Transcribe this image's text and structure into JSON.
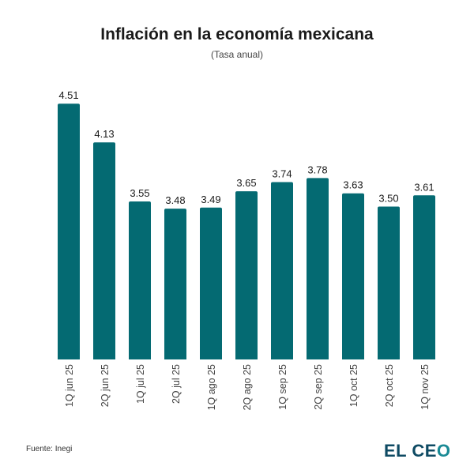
{
  "chart_data": {
    "type": "bar",
    "title": "Inflación en la economía mexicana",
    "subtitle": "(Tasa anual)",
    "xlabel": "",
    "ylabel": "",
    "ylim": [
      2.0,
      4.6
    ],
    "grid": false,
    "categories": [
      "1Q jun 25",
      "2Q jun 25",
      "1Q jul 25",
      "2Q jul 25",
      "1Q ago 25",
      "2Q ago 25",
      "1Q sep 25",
      "2Q sep 25",
      "1Q oct 25",
      "2Q oct 25",
      "1Q nov 25"
    ],
    "values": [
      4.51,
      4.13,
      3.55,
      3.48,
      3.49,
      3.65,
      3.74,
      3.78,
      3.63,
      3.5,
      3.61
    ],
    "labels": [
      "4.51",
      "4.13",
      "3.55",
      "3.48",
      "3.49",
      "3.65",
      "3.74",
      "3.78",
      "3.63",
      "3.50",
      "3.61"
    ],
    "bar_color": "#046a72"
  },
  "footer": {
    "source": "Fuente: Inegi",
    "logo_part1": "EL CE",
    "logo_part2": "O"
  }
}
